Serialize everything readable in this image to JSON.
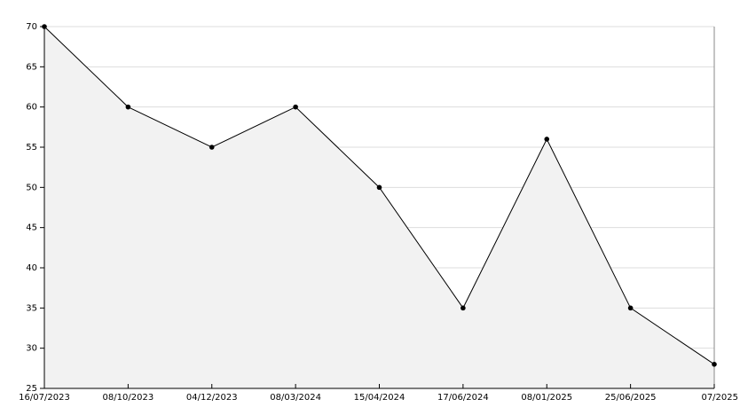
{
  "chart_data": {
    "type": "area",
    "categories": [
      "16/07/2023",
      "08/10/2023",
      "04/12/2023",
      "08/03/2024",
      "15/04/2024",
      "17/06/2024",
      "08/01/2025",
      "25/06/2025",
      "07/2025"
    ],
    "values": [
      70,
      60,
      55,
      60,
      50,
      35,
      56,
      35,
      28
    ],
    "color": "#000000",
    "fill": "#f2f2f2",
    "ylim": [
      25,
      70
    ],
    "yticks": [
      25,
      30,
      35,
      40,
      45,
      50,
      55,
      60,
      65,
      70
    ],
    "grid": true
  }
}
